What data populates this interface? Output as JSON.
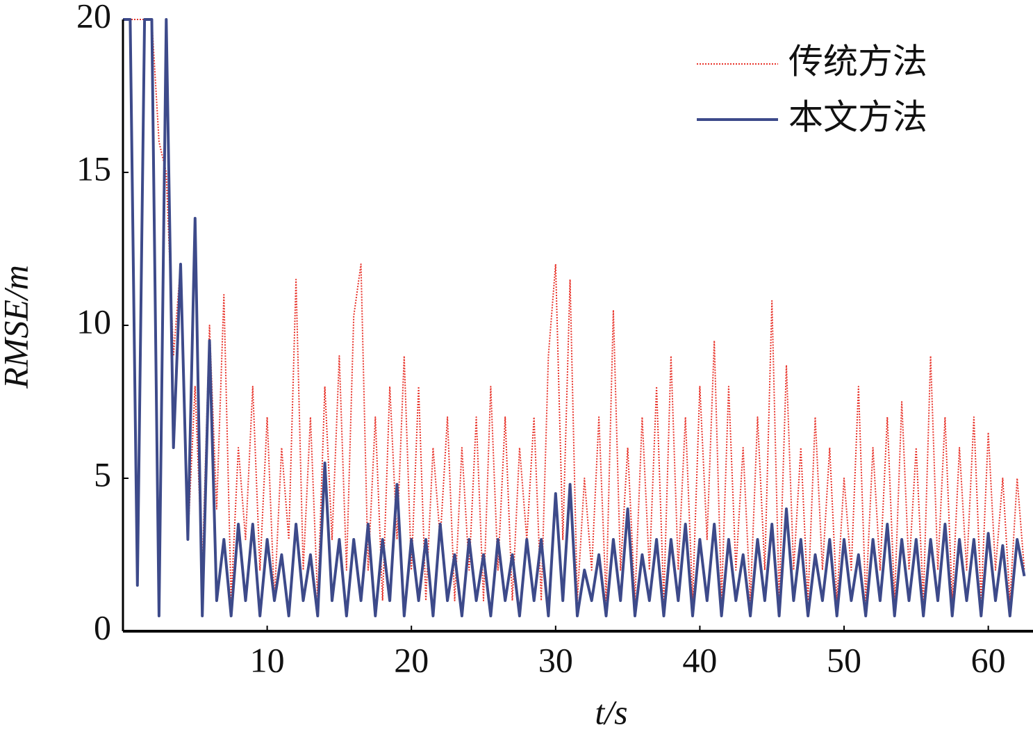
{
  "chart_data": {
    "type": "line",
    "x_label": "t/s",
    "y_label": "RMSE/m",
    "x": [
      0,
      0.5,
      1,
      1.5,
      2,
      2.5,
      3,
      3.5,
      4,
      4.5,
      5,
      5.5,
      6,
      6.5,
      7,
      7.5,
      8,
      8.5,
      9,
      9.5,
      10,
      10.5,
      11,
      11.5,
      12,
      12.5,
      13,
      13.5,
      14,
      14.5,
      15,
      15.5,
      16,
      16.5,
      17,
      17.5,
      18,
      18.5,
      19,
      19.5,
      20,
      20.5,
      21,
      21.5,
      22,
      22.5,
      23,
      23.5,
      24,
      24.5,
      25,
      25.5,
      26,
      26.5,
      27,
      27.5,
      28,
      28.5,
      29,
      29.5,
      30,
      30.5,
      31,
      31.5,
      32,
      32.5,
      33,
      33.5,
      34,
      34.5,
      35,
      35.5,
      36,
      36.5,
      37,
      37.5,
      38,
      38.5,
      39,
      39.5,
      40,
      40.5,
      41,
      41.5,
      42,
      42.5,
      43,
      43.5,
      44,
      44.5,
      45,
      45.5,
      46,
      46.5,
      47,
      47.5,
      48,
      48.5,
      49,
      49.5,
      50,
      50.5,
      51,
      51.5,
      52,
      52.5,
      53,
      53.5,
      54,
      54.5,
      55,
      55.5,
      56,
      56.5,
      57,
      57.5,
      58,
      58.5,
      59,
      59.5,
      60,
      60.5,
      61,
      61.5,
      62,
      62.5
    ],
    "series": [
      {
        "name": "传统方法",
        "color": "#e8332a",
        "dashed": true,
        "values": [
          20,
          20,
          20,
          20,
          20,
          16,
          15,
          9,
          12,
          3,
          8,
          2,
          10,
          4,
          11,
          1,
          6,
          3,
          8,
          2,
          7,
          1,
          6,
          3,
          11.5,
          2,
          7,
          1,
          8,
          3,
          9,
          2,
          10.3,
          12,
          2,
          7,
          1,
          8,
          3,
          9,
          2,
          8,
          1,
          6,
          3,
          7,
          1,
          6,
          2,
          7,
          1,
          8,
          2,
          7,
          1,
          6,
          3,
          7,
          1,
          9,
          12,
          3,
          11.5,
          1,
          5,
          2,
          7,
          1,
          10.5,
          2,
          6,
          1,
          7,
          2,
          8,
          1,
          9,
          2,
          7,
          1,
          8,
          3,
          9.5,
          1,
          8,
          2,
          6,
          1,
          7,
          2,
          10.8,
          1,
          8.7,
          2,
          6,
          1,
          7,
          2,
          6,
          1,
          5,
          2,
          8,
          1,
          6,
          2,
          7,
          1,
          7.5,
          2,
          6,
          1,
          9,
          2,
          7,
          1,
          6,
          2,
          7,
          1,
          6.5,
          2,
          5,
          1,
          5,
          2
        ]
      },
      {
        "name": "本文方法",
        "color": "#3d4a8a",
        "dashed": false,
        "values": [
          20,
          20,
          1.5,
          20,
          20,
          0.5,
          20,
          6,
          12,
          3,
          13.5,
          0.5,
          9.5,
          1,
          3,
          0.5,
          3.5,
          1,
          3.5,
          0.5,
          3,
          1,
          2.5,
          0.5,
          3.5,
          1,
          2.5,
          0.5,
          5.5,
          1,
          3,
          0.5,
          3,
          1,
          3.5,
          0.5,
          3,
          1,
          4.8,
          0.5,
          3,
          1,
          3,
          0.5,
          3.5,
          1,
          2.5,
          0.5,
          3,
          1,
          2.5,
          0.5,
          3,
          1,
          2.5,
          0.5,
          3,
          1,
          3,
          0.5,
          4.5,
          1,
          4.8,
          0.5,
          2,
          1,
          2.5,
          0.5,
          3,
          1,
          4,
          0.5,
          2.5,
          1,
          3,
          0.5,
          3,
          1,
          3.5,
          0.5,
          3,
          1,
          3.5,
          0.5,
          3,
          1,
          2.5,
          0.5,
          3,
          1,
          3.5,
          0.5,
          4,
          1,
          3,
          0.5,
          2.5,
          1,
          3,
          0.5,
          3,
          1,
          2.5,
          0.5,
          3,
          1,
          3.5,
          0.5,
          3,
          1,
          3,
          0.5,
          3,
          1,
          3.5,
          0.5,
          3,
          1,
          3,
          0.5,
          3.2,
          1,
          2.8,
          0.5,
          3,
          1.8
        ]
      }
    ],
    "xlim": [
      0,
      63.1
    ],
    "ylim": [
      0,
      20
    ],
    "xticks": [
      10,
      20,
      30,
      40,
      50,
      60
    ],
    "yticks": [
      0,
      5,
      10,
      15,
      20
    ],
    "legend": "upper right"
  }
}
